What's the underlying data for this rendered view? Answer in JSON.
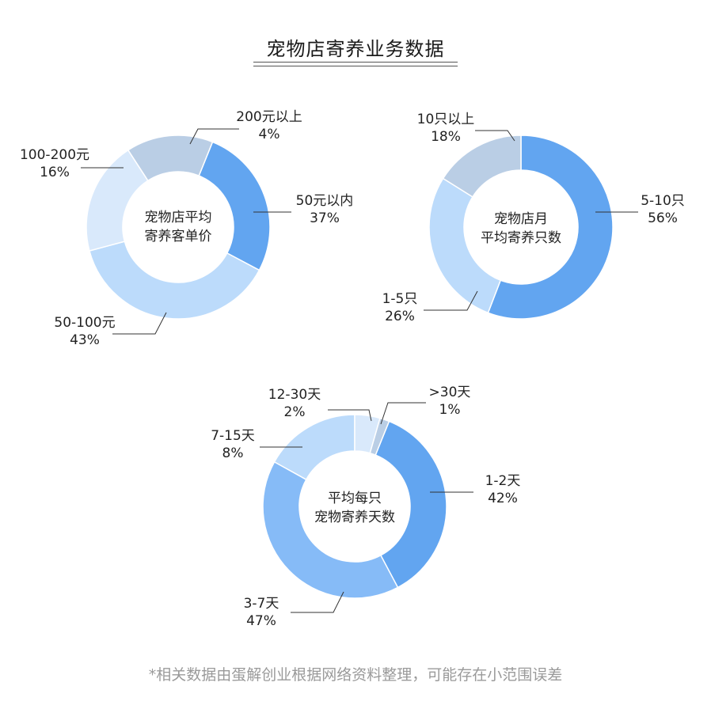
{
  "title": "宠物店寄养业务数据",
  "footnote": "*相关数据由蛋解创业根据网络资料整理，可能存在小范围误差",
  "colors": {
    "dark_blue": "#62A5F0",
    "mid_blue": "#86BBF7",
    "light_blue": "#BCDBFB",
    "very_light_blue": "#D9E9FB",
    "gray_blue": "#BACEE5",
    "leader_line": "#333333"
  },
  "chart_data": [
    {
      "type": "pie",
      "subtype": "donut",
      "title": "宠物店平均寄养客单价",
      "center_label": [
        "宠物店平均",
        "寄养客单价"
      ],
      "categories": [
        "50元以内",
        "50-100元",
        "100-200元",
        "200元以上"
      ],
      "values": [
        37,
        43,
        16,
        4
      ],
      "value_labels": [
        "37%",
        "43%",
        "16%",
        "4%"
      ],
      "unit": "%"
    },
    {
      "type": "pie",
      "subtype": "donut",
      "title": "宠物店月平均寄养只数",
      "center_label": [
        "宠物店月",
        "平均寄养只数"
      ],
      "categories": [
        "5-10只",
        "1-5只",
        "10只以上"
      ],
      "values": [
        56,
        26,
        18
      ],
      "value_labels": [
        "56%",
        "26%",
        "18%"
      ],
      "unit": "%"
    },
    {
      "type": "pie",
      "subtype": "donut",
      "title": "平均每只宠物寄养天数",
      "center_label": [
        "平均每只",
        "宠物寄养天数"
      ],
      "categories": [
        "1-2天",
        "3-7天",
        "7-15天",
        "12-30天",
        ">30天"
      ],
      "values": [
        42,
        47,
        8,
        2,
        1
      ],
      "value_labels": [
        "42%",
        "47%",
        "8%",
        "2%",
        "1%"
      ],
      "unit": "%"
    }
  ],
  "labels": {
    "c1": {
      "s0": {
        "name": "50元以内",
        "pct": "37%"
      },
      "s1": {
        "name": "50-100元",
        "pct": "43%"
      },
      "s2": {
        "name": "100-200元",
        "pct": "16%"
      },
      "s3": {
        "name": "200元以上",
        "pct": "4%"
      },
      "center1": "宠物店平均",
      "center2": "寄养客单价"
    },
    "c2": {
      "s0": {
        "name": "5-10只",
        "pct": "56%"
      },
      "s1": {
        "name": "1-5只",
        "pct": "26%"
      },
      "s2": {
        "name": "10只以上",
        "pct": "18%"
      },
      "center1": "宠物店月",
      "center2": "平均寄养只数"
    },
    "c3": {
      "s0": {
        "name": "1-2天",
        "pct": "42%"
      },
      "s1": {
        "name": "3-7天",
        "pct": "47%"
      },
      "s2": {
        "name": "7-15天",
        "pct": "8%"
      },
      "s3": {
        "name": "12-30天",
        "pct": "2%"
      },
      "s4": {
        "name": ">30天",
        "pct": "1%"
      },
      "center1": "平均每只",
      "center2": "宠物寄养天数"
    }
  }
}
